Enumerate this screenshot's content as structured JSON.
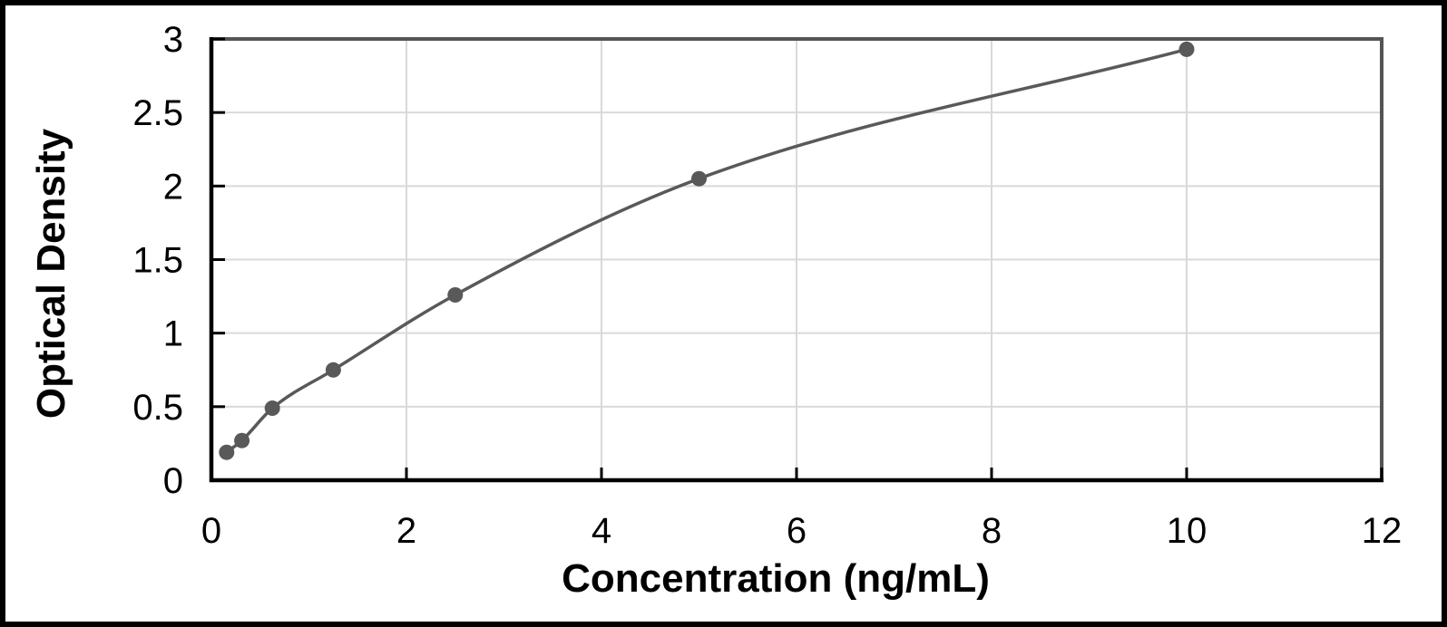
{
  "chart_data": {
    "type": "scatter",
    "line_style": "smooth",
    "title": "",
    "xlabel": "Concentration (ng/mL)",
    "ylabel": "Optical Density",
    "x": [
      0.156,
      0.313,
      0.625,
      1.25,
      2.5,
      5,
      10
    ],
    "y": [
      0.19,
      0.27,
      0.49,
      0.75,
      1.26,
      2.05,
      2.93
    ],
    "xlim": [
      0,
      12
    ],
    "ylim": [
      0,
      3
    ],
    "x_ticks": [
      0,
      2,
      4,
      6,
      8,
      10,
      12
    ],
    "y_ticks": [
      0,
      0.5,
      1,
      1.5,
      2,
      2.5,
      3
    ],
    "grid": true,
    "legend": "none",
    "colors": {
      "series": "#595959",
      "marker": "#595959",
      "gridline": "#d9d9d9",
      "axis": "#000000",
      "plot_border": "#545454",
      "tick_label": "#000000",
      "background": "#ffffff",
      "frame_border": "#000000"
    }
  }
}
